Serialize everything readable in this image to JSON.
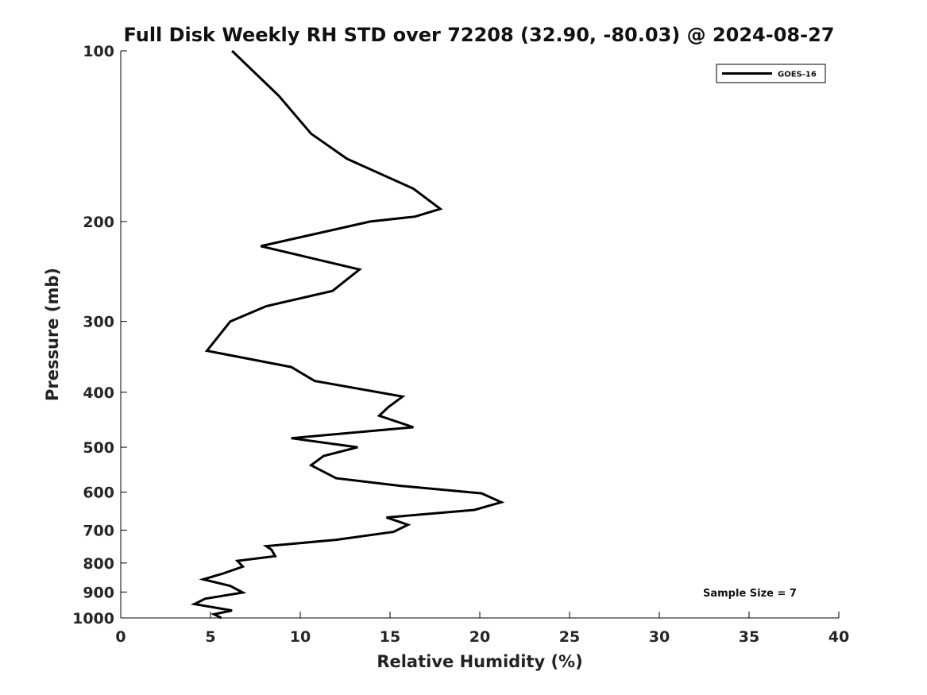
{
  "chart_data": {
    "type": "line",
    "title": "Full Disk Weekly RH STD over 72208 (32.90, -80.03) @ 2024-08-27",
    "xlabel": "Relative Humidity (%)",
    "ylabel": "Pressure (mb)",
    "xlim": [
      0,
      40
    ],
    "ylim": [
      1000,
      100
    ],
    "y_scale": "log",
    "x_ticks": [
      "0",
      "5",
      "10",
      "15",
      "20",
      "25",
      "30",
      "35",
      "40"
    ],
    "y_ticks": [
      "100",
      "200",
      "300",
      "400",
      "500",
      "600",
      "700",
      "800",
      "900",
      "1000"
    ],
    "grid": false,
    "legend": {
      "position": "top-right",
      "entries": [
        "GOES-16"
      ]
    },
    "annotation": "Sample Size = 7",
    "line_color": "#000000",
    "series": [
      {
        "name": "GOES-16",
        "x": [
          6.2,
          8.8,
          10.6,
          12.6,
          16.3,
          17.8,
          16.4,
          13.9,
          7.8,
          13.3,
          11.8,
          8.1,
          6.1,
          5.4,
          4.8,
          9.5,
          10.8,
          15.7,
          14.9,
          14.4,
          16.3,
          9.5,
          13.2,
          11.3,
          10.6,
          12.0,
          15.6,
          20.1,
          21.2,
          19.7,
          14.8,
          16.0,
          15.2,
          12.0,
          8.1,
          8.4,
          8.6,
          6.5,
          6.8,
          5.7,
          4.6,
          6.1,
          6.8,
          4.7,
          4.1,
          6.2,
          5.2,
          5.6
        ],
        "y": [
          100,
          120,
          140,
          155,
          175,
          190,
          196,
          200,
          221,
          243,
          265,
          282,
          300,
          320,
          338,
          361,
          382,
          407,
          425,
          440,
          461,
          482,
          500,
          518,
          538,
          567,
          585,
          603,
          625,
          645,
          665,
          685,
          705,
          728,
          747,
          758,
          778,
          793,
          812,
          835,
          855,
          878,
          902,
          925,
          945,
          970,
          985,
          1000
        ]
      }
    ]
  }
}
